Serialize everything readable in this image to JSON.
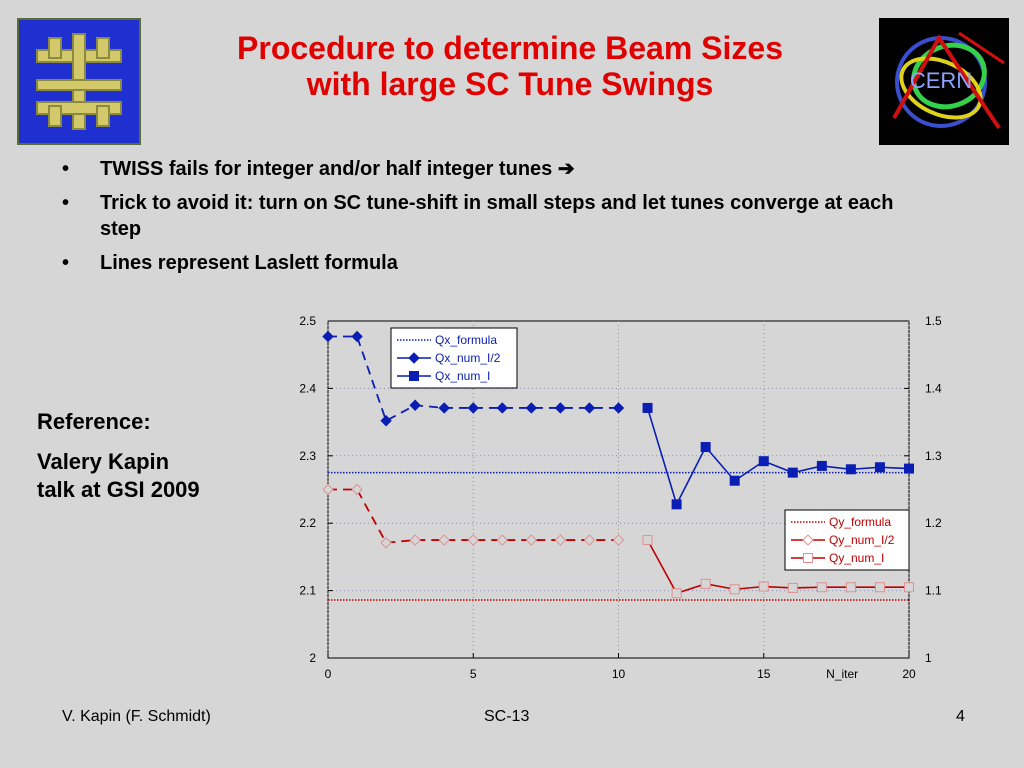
{
  "title": {
    "line1": "Procedure to determine Beam Sizes",
    "line2": "with large SC Tune Swings"
  },
  "logos": {
    "left_icon": "fermilab-logo",
    "right_icon": "cern-logo",
    "right_text": "CERN"
  },
  "bullets": [
    {
      "text": "TWISS fails for integer and/or half integer tunes ➔"
    },
    {
      "text": "Trick to avoid it: turn on SC tune-shift in small steps and let tunes converge at each step"
    },
    {
      "text": "Lines represent Laslett formula"
    }
  ],
  "bullet_glyph": "•",
  "reference": {
    "heading": "Reference:",
    "line1": "Valery Kapin",
    "line2": "talk at GSI 2009"
  },
  "footer": {
    "left": "V. Kapin (F. Schmidt)",
    "center": "SC-13",
    "right": "4"
  },
  "chart_data": {
    "type": "line",
    "xlabel": "N_iter",
    "x_ticks": [
      0,
      5,
      10,
      15,
      20
    ],
    "x_tick_labels": [
      "0",
      "5",
      "10",
      "15",
      "20"
    ],
    "xlim": [
      0,
      20
    ],
    "ylim": [
      2,
      2.5
    ],
    "y_ticks_left": [
      "2.5",
      "2.4",
      "2.3",
      "2.2",
      "2.1",
      "2"
    ],
    "y2lim": [
      1,
      1.5
    ],
    "y_ticks_right": [
      "1.5",
      "1.4",
      "1.3",
      "1.2",
      "1.1",
      "1"
    ],
    "grid": true,
    "colors": {
      "qx": "#0a1eb4",
      "qy": "#c00000"
    },
    "series": [
      {
        "name": "Qx_formula",
        "axis": "left",
        "style": "dotted",
        "x": [
          0,
          20
        ],
        "values": [
          2.275,
          2.275
        ]
      },
      {
        "name": "Qx_num_I/2",
        "axis": "left",
        "style": "dashed-diamond",
        "x": [
          0,
          1,
          2,
          3,
          4,
          5,
          6,
          7,
          8,
          9,
          10
        ],
        "values": [
          2.477,
          2.477,
          2.352,
          2.375,
          2.371,
          2.371,
          2.371,
          2.371,
          2.371,
          2.371,
          2.371
        ]
      },
      {
        "name": "Qx_num_I",
        "axis": "left",
        "style": "solid-square",
        "x": [
          11,
          12,
          13,
          14,
          15,
          16,
          17,
          18,
          19,
          20
        ],
        "values": [
          2.371,
          2.228,
          2.313,
          2.263,
          2.292,
          2.275,
          2.285,
          2.28,
          2.283,
          2.281
        ]
      },
      {
        "name": "Qy_formula",
        "axis": "right",
        "style": "dotted",
        "x": [
          0,
          20
        ],
        "values": [
          1.086,
          1.086
        ]
      },
      {
        "name": "Qy_num_I/2",
        "axis": "right",
        "style": "dashed-open-diamond",
        "x": [
          0,
          1,
          2,
          3,
          4,
          5,
          6,
          7,
          8,
          9,
          10
        ],
        "values": [
          1.25,
          1.25,
          1.171,
          1.175,
          1.175,
          1.175,
          1.175,
          1.175,
          1.175,
          1.175,
          1.175
        ]
      },
      {
        "name": "Qy_num_I",
        "axis": "right",
        "style": "solid-open-square",
        "x": [
          11,
          12,
          13,
          14,
          15,
          16,
          17,
          18,
          19,
          20
        ],
        "values": [
          1.175,
          1.096,
          1.11,
          1.102,
          1.106,
          1.104,
          1.105,
          1.105,
          1.105,
          1.105
        ]
      }
    ],
    "legends": [
      {
        "placement": "top-left",
        "entries": [
          "Qx_formula",
          "Qx_num_I/2",
          "Qx_num_I"
        ]
      },
      {
        "placement": "right-middle",
        "entries": [
          "Qy_formula",
          "Qy_num_I/2",
          "Qy_num_I"
        ]
      }
    ]
  }
}
